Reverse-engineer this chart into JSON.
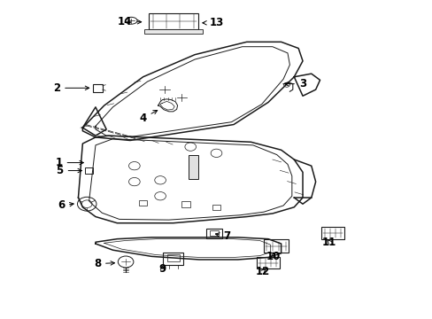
{
  "background_color": "#ffffff",
  "figsize": [
    4.89,
    3.6
  ],
  "dpi": 100,
  "line_color": "#1a1a1a",
  "label_fontsize": 8.5,
  "arrow_color": "#1a1a1a",
  "upper_panel_outer": {
    "x": [
      0.18,
      0.22,
      0.3,
      0.4,
      0.52,
      0.6,
      0.65,
      0.68,
      0.68,
      0.65,
      0.6,
      0.52,
      0.22,
      0.18,
      0.18
    ],
    "y": [
      0.62,
      0.68,
      0.76,
      0.82,
      0.86,
      0.87,
      0.86,
      0.83,
      0.8,
      0.72,
      0.65,
      0.6,
      0.56,
      0.58,
      0.62
    ]
  },
  "upper_panel_inner": {
    "x": [
      0.21,
      0.25,
      0.32,
      0.42,
      0.52,
      0.59,
      0.63,
      0.655,
      0.655,
      0.63,
      0.58,
      0.51,
      0.24,
      0.21,
      0.21
    ],
    "y": [
      0.625,
      0.675,
      0.745,
      0.805,
      0.845,
      0.856,
      0.845,
      0.815,
      0.785,
      0.715,
      0.645,
      0.61,
      0.575,
      0.59,
      0.625
    ]
  }
}
